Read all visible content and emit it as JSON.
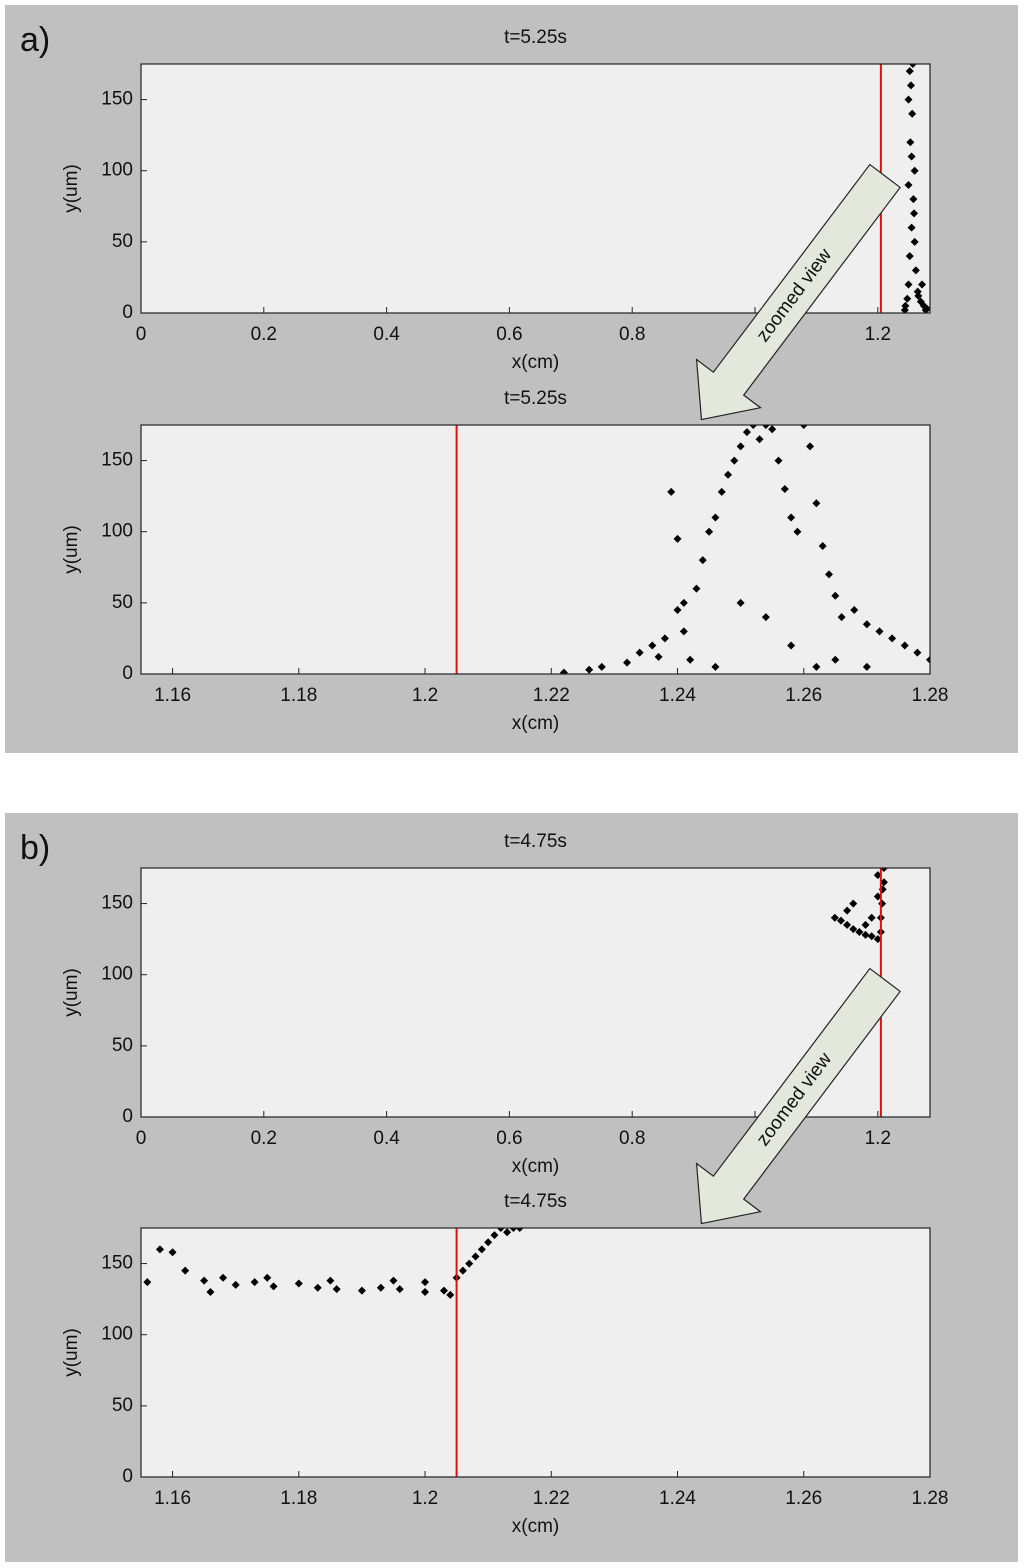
{
  "panel_labels": [
    "a)",
    "b)"
  ],
  "chart_data": [
    {
      "type": "scatter",
      "title": "t=5.25s",
      "x_label": "x(cm)",
      "y_label": "y(um)",
      "annotation": "zoomed view",
      "xlim": [
        0,
        1.285
      ],
      "xticks": [
        0,
        0.2,
        0.4,
        0.6,
        0.8,
        1,
        1.2
      ],
      "ylim": [
        0,
        175
      ],
      "yticks": [
        0,
        50,
        100,
        150
      ],
      "vline": 1.205,
      "vline_color": "#e01010",
      "series": [
        {
          "color": "#000000",
          "x": [
            1.245,
            1.25,
            1.252,
            1.255,
            1.258,
            1.26,
            1.248,
            1.253,
            1.256,
            1.25,
            1.254,
            1.257,
            1.262,
            1.265,
            1.27,
            1.275,
            1.28,
            1.244,
            1.26,
            1.266,
            1.272,
            1.278,
            1.25,
            1.255,
            1.259,
            1.252
          ],
          "values": [
            5,
            20,
            40,
            60,
            80,
            100,
            10,
            120,
            140,
            150,
            160,
            175,
            30,
            15,
            8,
            5,
            3,
            2,
            50,
            12,
            20,
            2,
            90,
            110,
            70,
            170
          ]
        }
      ]
    },
    {
      "type": "scatter",
      "title": "t=5.25s",
      "x_label": "x(cm)",
      "y_label": "y(um)",
      "xlim": [
        1.155,
        1.28
      ],
      "xticks": [
        1.16,
        1.18,
        1.2,
        1.22,
        1.24,
        1.26,
        1.28
      ],
      "ylim": [
        0,
        175
      ],
      "yticks": [
        0,
        50,
        100,
        150
      ],
      "vline": 1.205,
      "vline_color": "#e01010",
      "series": [
        {
          "color": "#000000",
          "x": [
            1.222,
            1.226,
            1.228,
            1.232,
            1.234,
            1.236,
            1.238,
            1.24,
            1.241,
            1.243,
            1.244,
            1.245,
            1.246,
            1.247,
            1.248,
            1.249,
            1.25,
            1.251,
            1.252,
            1.253,
            1.254,
            1.255,
            1.256,
            1.257,
            1.258,
            1.259,
            1.26,
            1.261,
            1.262,
            1.263,
            1.264,
            1.265,
            1.266,
            1.268,
            1.27,
            1.272,
            1.274,
            1.276,
            1.278,
            1.28,
            1.242,
            1.246,
            1.25,
            1.254,
            1.258,
            1.262,
            1.237,
            1.241,
            1.265,
            1.27,
            1.239,
            1.24
          ],
          "values": [
            1,
            3,
            5,
            8,
            15,
            20,
            25,
            45,
            30,
            60,
            80,
            100,
            110,
            128,
            140,
            150,
            160,
            170,
            175,
            165,
            175,
            172,
            150,
            130,
            110,
            100,
            175,
            160,
            120,
            90,
            70,
            55,
            40,
            45,
            35,
            30,
            25,
            20,
            15,
            10,
            10,
            5,
            50,
            40,
            20,
            5,
            12,
            50,
            10,
            5,
            128,
            95
          ]
        }
      ]
    },
    {
      "type": "scatter",
      "title": "t=4.75s",
      "x_label": "x(cm)",
      "y_label": "y(um)",
      "annotation": "zoomed view",
      "xlim": [
        0,
        1.285
      ],
      "xticks": [
        0,
        0.2,
        0.4,
        0.6,
        0.8,
        1,
        1.2
      ],
      "ylim": [
        0,
        175
      ],
      "yticks": [
        0,
        50,
        100,
        150
      ],
      "vline": 1.205,
      "vline_color": "#e01010",
      "series": [
        {
          "color": "#000000",
          "x": [
            1.13,
            1.14,
            1.15,
            1.16,
            1.17,
            1.18,
            1.19,
            1.2,
            1.205,
            1.205,
            1.207,
            1.208,
            1.21,
            1.15,
            1.16,
            1.18,
            1.19,
            1.2,
            1.21,
            1.2
          ],
          "values": [
            140,
            138,
            135,
            132,
            130,
            128,
            127,
            125,
            130,
            140,
            150,
            160,
            175,
            145,
            150,
            135,
            140,
            155,
            165,
            170
          ]
        }
      ]
    },
    {
      "type": "scatter",
      "title": "t=4.75s",
      "x_label": "x(cm)",
      "y_label": "y(um)",
      "xlim": [
        1.155,
        1.28
      ],
      "xticks": [
        1.16,
        1.18,
        1.2,
        1.22,
        1.24,
        1.26,
        1.28
      ],
      "ylim": [
        0,
        175
      ],
      "yticks": [
        0,
        50,
        100,
        150
      ],
      "vline": 1.205,
      "vline_color": "#e01010",
      "series": [
        {
          "color": "#000000",
          "x": [
            1.156,
            1.158,
            1.16,
            1.162,
            1.165,
            1.168,
            1.17,
            1.173,
            1.176,
            1.18,
            1.183,
            1.186,
            1.19,
            1.193,
            1.196,
            1.2,
            1.203,
            1.205,
            1.206,
            1.207,
            1.208,
            1.209,
            1.21,
            1.211,
            1.212,
            1.213,
            1.214,
            1.215,
            1.166,
            1.175,
            1.185,
            1.195,
            1.2,
            1.204
          ],
          "values": [
            137,
            160,
            158,
            145,
            138,
            140,
            135,
            137,
            134,
            136,
            133,
            132,
            131,
            133,
            132,
            130,
            131,
            140,
            145,
            150,
            155,
            160,
            165,
            170,
            175,
            172,
            175,
            175,
            130,
            140,
            138,
            138,
            137,
            128
          ]
        }
      ]
    }
  ]
}
